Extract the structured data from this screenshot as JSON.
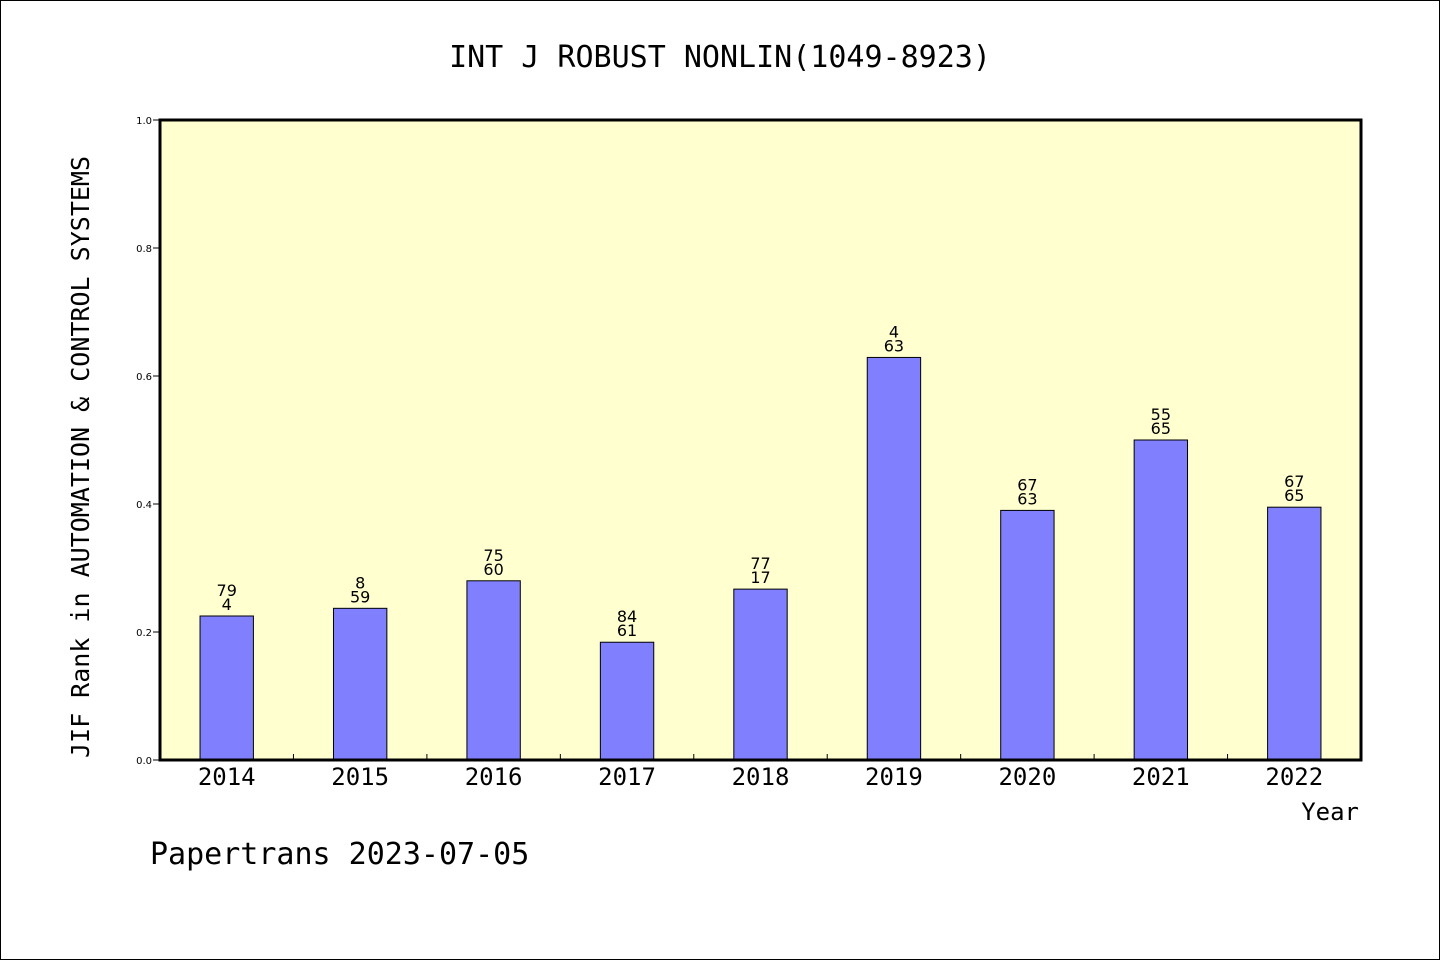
{
  "chart_data": {
    "type": "bar",
    "title": "INT J ROBUST NONLIN(1049-8923)",
    "xlabel": "Year",
    "ylabel": "JIF Rank in AUTOMATION & CONTROL SYSTEMS",
    "footer": "Papertrans 2023-07-05",
    "ylim": [
      0.0,
      1.0
    ],
    "yticks": [
      "0.0",
      "0.2",
      "0.4",
      "0.6",
      "0.8",
      "1.0"
    ],
    "categories": [
      "2014",
      "2015",
      "2016",
      "2017",
      "2018",
      "2019",
      "2020",
      "2021",
      "2022"
    ],
    "values": [
      0.225,
      0.237,
      0.28,
      0.184,
      0.267,
      0.629,
      0.39,
      0.5,
      0.395
    ],
    "labels": [
      [
        "79",
        "4"
      ],
      [
        "8",
        "59"
      ],
      [
        "75",
        "60"
      ],
      [
        "84",
        "61"
      ],
      [
        "77",
        "17"
      ],
      [
        "4",
        "63"
      ],
      [
        "67",
        "63"
      ],
      [
        "55",
        "65"
      ],
      [
        "67",
        "65"
      ]
    ],
    "grid": false,
    "colors": {
      "plot_background": "#ffffd0",
      "bar_fill": "#8080ff",
      "bar_stroke": "#000000",
      "axis": "#000000"
    }
  }
}
